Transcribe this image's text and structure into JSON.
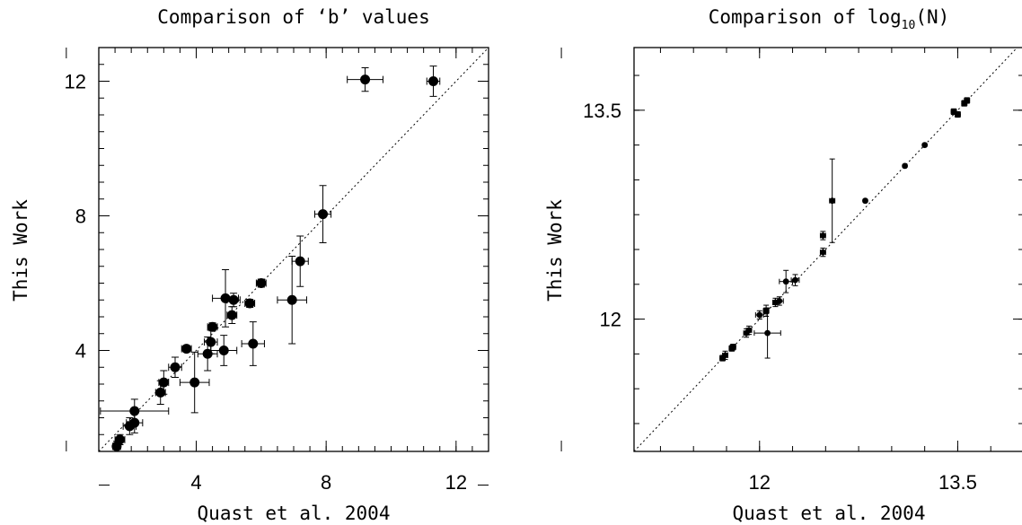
{
  "chart_data": [
    {
      "type": "scatter",
      "title": "Comparison of ‘b’ values",
      "xlabel": "Quast et al. 2004",
      "ylabel": "This Work",
      "xlim": [
        1.0,
        13.0
      ],
      "ylim": [
        1.0,
        13.0
      ],
      "xticks": [
        4,
        8,
        12
      ],
      "yticks": [
        4,
        8,
        12
      ],
      "xtick_labels": [
        "4",
        "8",
        "12"
      ],
      "ytick_labels": [
        "4",
        "8",
        "12"
      ],
      "diagonal": "y = x (dotted)",
      "marker": "large",
      "points": [
        {
          "x": 9.2,
          "y": 12.05,
          "xerr": 0.55,
          "yerr": 0.35
        },
        {
          "x": 11.3,
          "y": 12.0,
          "xerr": 0.2,
          "yerr": 0.45
        },
        {
          "x": 7.9,
          "y": 8.05,
          "xerr": 0.25,
          "yerr": 0.85
        },
        {
          "x": 7.2,
          "y": 6.65,
          "xerr": 0.25,
          "yerr": 0.75
        },
        {
          "x": 6.95,
          "y": 5.5,
          "xerr": 0.45,
          "yerr": 1.3
        },
        {
          "x": 6.0,
          "y": 6.0,
          "xerr": 0.15,
          "yerr": 0.12
        },
        {
          "x": 5.65,
          "y": 5.4,
          "xerr": 0.15,
          "yerr": 0.12
        },
        {
          "x": 4.9,
          "y": 5.55,
          "xerr": 0.4,
          "yerr": 0.85
        },
        {
          "x": 5.15,
          "y": 5.5,
          "xerr": 0.2,
          "yerr": 0.2
        },
        {
          "x": 5.1,
          "y": 5.05,
          "xerr": 0.15,
          "yerr": 0.25
        },
        {
          "x": 4.5,
          "y": 4.7,
          "xerr": 0.15,
          "yerr": 0.12
        },
        {
          "x": 5.75,
          "y": 4.2,
          "xerr": 0.35,
          "yerr": 0.65
        },
        {
          "x": 4.85,
          "y": 4.0,
          "xerr": 0.4,
          "yerr": 0.45
        },
        {
          "x": 4.45,
          "y": 4.25,
          "xerr": 0.2,
          "yerr": 0.35
        },
        {
          "x": 3.7,
          "y": 4.05,
          "xerr": 0.15,
          "yerr": 0.1
        },
        {
          "x": 4.35,
          "y": 3.9,
          "xerr": 0.3,
          "yerr": 0.5
        },
        {
          "x": 3.35,
          "y": 3.5,
          "xerr": 0.2,
          "yerr": 0.3
        },
        {
          "x": 3.95,
          "y": 3.05,
          "xerr": 0.45,
          "yerr": 0.9
        },
        {
          "x": 3.0,
          "y": 3.05,
          "xerr": 0.15,
          "yerr": 0.35
        },
        {
          "x": 2.9,
          "y": 2.75,
          "xerr": 0.15,
          "yerr": 0.35
        },
        {
          "x": 2.1,
          "y": 2.2,
          "xerr": 1.05,
          "yerr": 0.35
        },
        {
          "x": 2.1,
          "y": 1.85,
          "xerr": 0.25,
          "yerr": 0.3
        },
        {
          "x": 1.95,
          "y": 1.75,
          "xerr": 0.2,
          "yerr": 0.25
        },
        {
          "x": 1.65,
          "y": 1.35,
          "xerr": 0.15,
          "yerr": 0.15
        },
        {
          "x": 1.55,
          "y": 1.15,
          "xerr": 0.12,
          "yerr": 0.15
        }
      ]
    },
    {
      "type": "scatter",
      "title": "Comparison of log",
      "title_sub": "10",
      "title_tail": "(N)",
      "xlabel": "Quast et al. 2004",
      "ylabel": "This Work",
      "xlim": [
        11.05,
        14.0
      ],
      "ylim": [
        11.05,
        13.95
      ],
      "xticks": [
        12,
        13.5
      ],
      "yticks": [
        12,
        13.5
      ],
      "xtick_labels": [
        "12",
        "13.5"
      ],
      "ytick_labels": [
        "12",
        "13.5"
      ],
      "diagonal": "y = x (dotted)",
      "marker": "small",
      "points": [
        {
          "x": 13.57,
          "y": 13.57,
          "xerr": 0.02,
          "yerr": 0.02
        },
        {
          "x": 13.55,
          "y": 13.55,
          "xerr": 0.02,
          "yerr": 0.02
        },
        {
          "x": 13.5,
          "y": 13.47,
          "xerr": 0.02,
          "yerr": 0.02
        },
        {
          "x": 13.47,
          "y": 13.49,
          "xerr": 0.02,
          "yerr": 0.02
        },
        {
          "x": 13.25,
          "y": 13.25,
          "xerr": 0.01,
          "yerr": 0.01
        },
        {
          "x": 13.1,
          "y": 13.1,
          "xerr": 0.01,
          "yerr": 0.01
        },
        {
          "x": 12.8,
          "y": 12.85,
          "xerr": 0.01,
          "yerr": 0.01
        },
        {
          "x": 12.55,
          "y": 12.85,
          "xerr": 0.02,
          "yerr": 0.3
        },
        {
          "x": 12.48,
          "y": 12.6,
          "xerr": 0.02,
          "yerr": 0.03
        },
        {
          "x": 12.48,
          "y": 12.48,
          "xerr": 0.02,
          "yerr": 0.03
        },
        {
          "x": 12.27,
          "y": 12.28,
          "xerr": 0.03,
          "yerr": 0.04
        },
        {
          "x": 12.2,
          "y": 12.27,
          "xerr": 0.05,
          "yerr": 0.08
        },
        {
          "x": 12.15,
          "y": 12.13,
          "xerr": 0.03,
          "yerr": 0.03
        },
        {
          "x": 12.12,
          "y": 12.12,
          "xerr": 0.02,
          "yerr": 0.03
        },
        {
          "x": 12.05,
          "y": 12.06,
          "xerr": 0.02,
          "yerr": 0.04
        },
        {
          "x": 12.05,
          "y": 12.06,
          "xerr": 0.02,
          "yerr": 0.02
        },
        {
          "x": 12.0,
          "y": 12.03,
          "xerr": 0.03,
          "yerr": 0.03
        },
        {
          "x": 12.06,
          "y": 11.9,
          "xerr": 0.1,
          "yerr": 0.18
        },
        {
          "x": 11.9,
          "y": 11.9,
          "xerr": 0.02,
          "yerr": 0.03
        },
        {
          "x": 11.92,
          "y": 11.92,
          "xerr": 0.02,
          "yerr": 0.03
        },
        {
          "x": 11.8,
          "y": 11.8,
          "xerr": 0.02,
          "yerr": 0.02
        },
        {
          "x": 11.79,
          "y": 11.79,
          "xerr": 0.02,
          "yerr": 0.02
        },
        {
          "x": 11.74,
          "y": 11.74,
          "xerr": 0.02,
          "yerr": 0.03
        },
        {
          "x": 11.72,
          "y": 11.72,
          "xerr": 0.02,
          "yerr": 0.02
        }
      ]
    }
  ]
}
